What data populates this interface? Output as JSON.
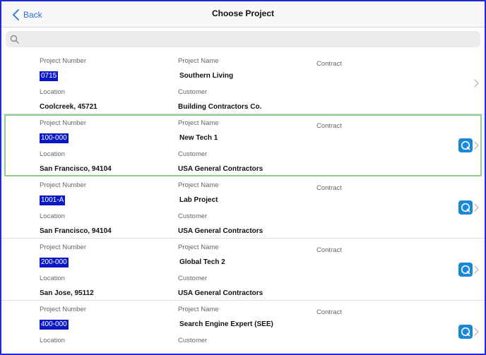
{
  "nav": {
    "back_label": "Back",
    "title": "Choose Project"
  },
  "search": {
    "placeholder": "",
    "value": ""
  },
  "labels": {
    "project_number": "Project Number",
    "project_name": "Project Name",
    "contract": "Contract",
    "location": "Location",
    "customer": "Customer"
  },
  "projects": [
    {
      "number": "0715",
      "name": "Southern Living",
      "location": "Coolcreek, 45721",
      "customer": "Building Contractors Co.",
      "contract": "",
      "selected": false,
      "has_action": false
    },
    {
      "number": "100-000",
      "name": "New Tech 1",
      "location": "San Francisco, 94104",
      "customer": "USA General Contractors",
      "contract": "",
      "selected": true,
      "has_action": true
    },
    {
      "number": "1001-A",
      "name": "Lab Project",
      "location": "San Francisco, 94104",
      "customer": "USA General Contractors",
      "contract": "",
      "selected": false,
      "has_action": true
    },
    {
      "number": "200-000",
      "name": "Global Tech 2",
      "location": "San Jose, 95112",
      "customer": "USA General Contractors",
      "contract": "",
      "selected": false,
      "has_action": true
    },
    {
      "number": "400-000",
      "name": "Search Engine Expert (SEE)",
      "location": "",
      "customer": "",
      "contract": "",
      "selected": false,
      "has_action": true
    }
  ],
  "colors": {
    "accent": "#2f6fe0",
    "badge": "#0a18c8",
    "selected_outline": "#8fcf8f",
    "action": "#1a86d8"
  }
}
